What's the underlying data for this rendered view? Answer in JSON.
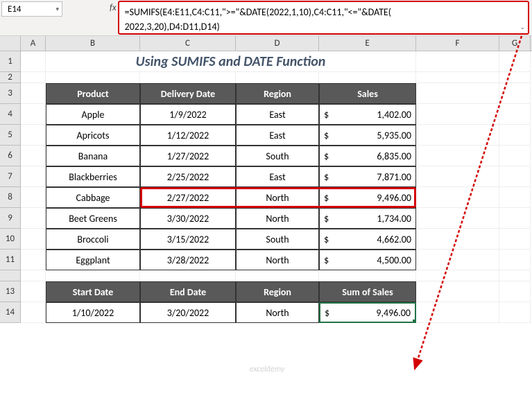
{
  "nameBox": {
    "value": "E14"
  },
  "formulaBar": {
    "line1": "=SUMIFS(E4:E11,C4:C11,\">=\"&DATE(2022,1,10),C4:C11,\"<=\"&DATE(",
    "line2": "2022,3,20),D4:D11,D14)"
  },
  "columns": [
    "A",
    "B",
    "C",
    "D",
    "E",
    "F",
    "G"
  ],
  "rowNumbers": [
    "1",
    "2",
    "3",
    "4",
    "5",
    "6",
    "7",
    "8",
    "9",
    "10",
    "11",
    "",
    "13",
    "14"
  ],
  "title": "Using SUMIFS and DATE Function",
  "table1": {
    "headers": [
      "Product",
      "Delivery Date",
      "Region",
      "Sales"
    ],
    "rows": [
      {
        "product": "Apple",
        "date": "1/9/2022",
        "region": "East",
        "sales": "1,402.00"
      },
      {
        "product": "Apricots",
        "date": "1/12/2022",
        "region": "East",
        "sales": "5,935.00"
      },
      {
        "product": "Banana",
        "date": "1/27/2022",
        "region": "South",
        "sales": "6,835.00"
      },
      {
        "product": "Blackberries",
        "date": "2/25/2022",
        "region": "East",
        "sales": "7,871.00"
      },
      {
        "product": "Cabbage",
        "date": "2/27/2022",
        "region": "North",
        "sales": "9,496.00"
      },
      {
        "product": "Beet Greens",
        "date": "3/30/2022",
        "region": "North",
        "sales": "1,734.00"
      },
      {
        "product": "Broccoli",
        "date": "3/15/2022",
        "region": "South",
        "sales": "4,662.00"
      },
      {
        "product": "Eggplant",
        "date": "3/28/2022",
        "region": "North",
        "sales": "4,500.00"
      }
    ]
  },
  "table2": {
    "headers": [
      "Start Date",
      "End Date",
      "Region",
      "Sum of Sales"
    ],
    "row": {
      "start": "1/10/2022",
      "end": "3/20/2022",
      "region": "North",
      "sum": "9,496.00"
    }
  },
  "watermark": "exceldemy",
  "colors": {
    "headerBg": "#595959",
    "headerText": "#ffffff",
    "titleColor": "#44546a",
    "borderRed": "#d40000",
    "selectGreen": "#217346"
  }
}
